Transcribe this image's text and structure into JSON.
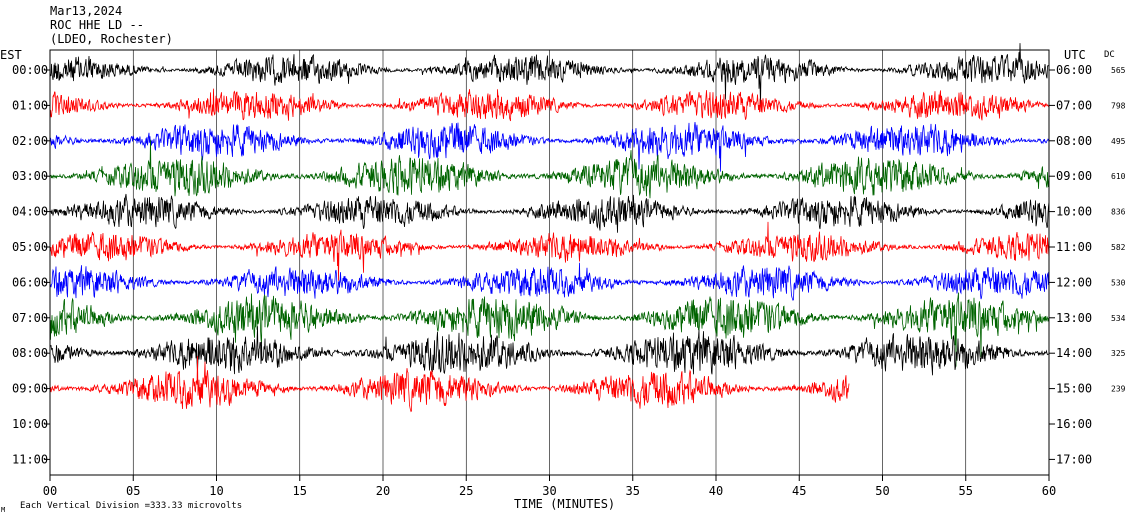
{
  "header": {
    "date": "Mar13,2024",
    "station": "ROC HHE LD --",
    "network": "(LDEO, Rochester)"
  },
  "labels": {
    "left_zone": "EST",
    "right_zone": "UTC",
    "dc_header": "DC",
    "xlabel": "TIME (MINUTES)",
    "scale_note": "Each Vertical Division = ",
    "scale_value": "333.33 microvolts",
    "corner_mark": "M"
  },
  "colors": {
    "cycle": [
      "#000000",
      "#ff0000",
      "#0000ff",
      "#006400"
    ],
    "grid": "#000000",
    "background": "#ffffff"
  },
  "chart_data": {
    "type": "line",
    "title": "Mar13,2024",
    "xlabel": "TIME (MINUTES)",
    "xlim": [
      0,
      60
    ],
    "x_ticks": [
      "00",
      "05",
      "10",
      "15",
      "20",
      "25",
      "30",
      "35",
      "40",
      "45",
      "50",
      "55",
      "60"
    ],
    "y_ticks_left": [
      "00:00",
      "01:00",
      "02:00",
      "03:00",
      "04:00",
      "05:00",
      "06:00",
      "07:00",
      "08:00",
      "09:00",
      "10:00",
      "11:00"
    ],
    "y_ticks_right": [
      "06:00",
      "07:00",
      "08:00",
      "09:00",
      "10:00",
      "11:00",
      "12:00",
      "13:00",
      "14:00",
      "15:00",
      "16:00",
      "17:00"
    ],
    "dc_values": [
      "565",
      "798",
      "495",
      "610",
      "836",
      "582",
      "530",
      "534",
      "325",
      "239"
    ],
    "series": [
      {
        "hour_est": "00:00",
        "color": "#000000",
        "minutes_recorded": 60,
        "relative_amplitude": 0.55
      },
      {
        "hour_est": "01:00",
        "color": "#ff0000",
        "minutes_recorded": 60,
        "relative_amplitude": 0.55
      },
      {
        "hour_est": "02:00",
        "color": "#0000ff",
        "minutes_recorded": 60,
        "relative_amplitude": 0.65
      },
      {
        "hour_est": "03:00",
        "color": "#006400",
        "minutes_recorded": 60,
        "relative_amplitude": 0.75
      },
      {
        "hour_est": "04:00",
        "color": "#000000",
        "minutes_recorded": 60,
        "relative_amplitude": 0.6
      },
      {
        "hour_est": "05:00",
        "color": "#ff0000",
        "minutes_recorded": 60,
        "relative_amplitude": 0.55
      },
      {
        "hour_est": "06:00",
        "color": "#0000ff",
        "minutes_recorded": 60,
        "relative_amplitude": 0.6
      },
      {
        "hour_est": "07:00",
        "color": "#006400",
        "minutes_recorded": 60,
        "relative_amplitude": 0.8
      },
      {
        "hour_est": "08:00",
        "color": "#000000",
        "minutes_recorded": 60,
        "relative_amplitude": 0.8
      },
      {
        "hour_est": "09:00",
        "color": "#ff0000",
        "minutes_recorded": 48,
        "relative_amplitude": 0.7
      }
    ],
    "grid": true
  }
}
